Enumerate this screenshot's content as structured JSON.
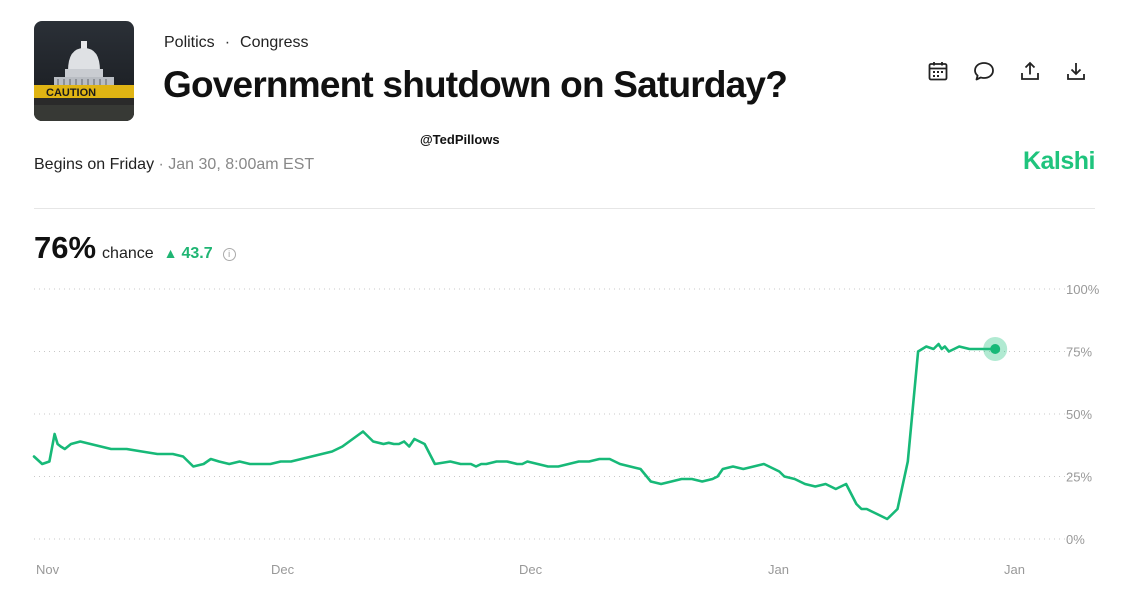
{
  "header": {
    "breadcrumb": [
      "Politics",
      "Congress"
    ],
    "breadcrumb_separator": "·",
    "title": "Government shutdown on Saturday?",
    "thumbnail_caption": "CAUTION",
    "watermark": "@TedPillows",
    "begins_label": "Begins on Friday",
    "begins_date": "Jan 30, 8:00am EST",
    "brand": "Kalshi"
  },
  "toolbar": {
    "icons": [
      "calendar-icon",
      "comment-icon",
      "share-icon",
      "download-icon"
    ]
  },
  "stats": {
    "chance_value": "76%",
    "chance_label": "chance",
    "change": "43.7",
    "info_glyph": "i"
  },
  "colors": {
    "accent": "#1fc47d",
    "line": "#17b978",
    "grid": "#c8c8c8"
  },
  "chart_data": {
    "type": "line",
    "x_tick_labels": [
      "Nov",
      "Dec",
      "Dec",
      "Jan",
      "Jan"
    ],
    "y_ticks": [
      0,
      25,
      50,
      75,
      100
    ],
    "y_tick_labels": [
      "0%",
      "25%",
      "50%",
      "75%",
      "100%"
    ],
    "ylim": [
      0,
      100
    ],
    "xlim": [
      0,
      100
    ],
    "grid": true,
    "series": [
      {
        "x": [
          0,
          0.8,
          1.5,
          2.0,
          2.3,
          2.6,
          3.0,
          3.6,
          4.5,
          5.5,
          6.5,
          7.5,
          9,
          10.5,
          12,
          13.5,
          14.5,
          15.5,
          16.5,
          17.2,
          18,
          19,
          20,
          21,
          22,
          23,
          24,
          25,
          26,
          27,
          28,
          29,
          30,
          31,
          32,
          33,
          34,
          34.5,
          35,
          35.5,
          36,
          36.5,
          37,
          38,
          39,
          40.5,
          41.5,
          42.5,
          43,
          43.5,
          44,
          45,
          46,
          47,
          47.5,
          48,
          49,
          50,
          51,
          52,
          53,
          54,
          55,
          56,
          57,
          58,
          59,
          60,
          61,
          62,
          63,
          64,
          65,
          66,
          66.5,
          67,
          68,
          69,
          70,
          71,
          72,
          72.5,
          73,
          74,
          75,
          76,
          77,
          78,
          79,
          80,
          80.5,
          81,
          81.5,
          82,
          82.5,
          83,
          83.5,
          84,
          85,
          86,
          86.8,
          87.5,
          88,
          88.3,
          88.6,
          89,
          89.5,
          90,
          91,
          92,
          93,
          93.5
        ],
        "y": [
          33,
          30,
          31,
          42,
          38,
          37,
          36,
          38,
          39,
          38,
          37,
          36,
          36,
          35,
          34,
          34,
          33,
          29,
          30,
          32,
          31,
          30,
          31,
          30,
          30,
          30,
          31,
          31,
          32,
          33,
          34,
          35,
          37,
          40,
          43,
          39,
          38,
          38.5,
          38,
          38,
          39,
          37,
          40,
          38,
          30,
          31,
          30,
          30,
          29,
          30,
          30,
          31,
          31,
          30,
          30,
          31,
          30,
          29,
          29,
          30,
          31,
          31,
          32,
          32,
          30,
          29,
          28,
          23,
          22,
          23,
          24,
          24,
          23,
          24,
          25,
          28,
          29,
          28,
          29,
          30,
          28,
          27,
          25,
          24,
          22,
          21,
          22,
          20,
          22,
          14,
          12,
          12,
          11,
          10,
          9,
          8,
          10,
          12,
          31,
          75,
          77,
          76,
          78,
          76,
          77,
          75,
          76,
          77,
          76,
          76,
          76,
          76
        ],
        "last_point": {
          "x": 93.5,
          "y": 76
        }
      }
    ]
  }
}
